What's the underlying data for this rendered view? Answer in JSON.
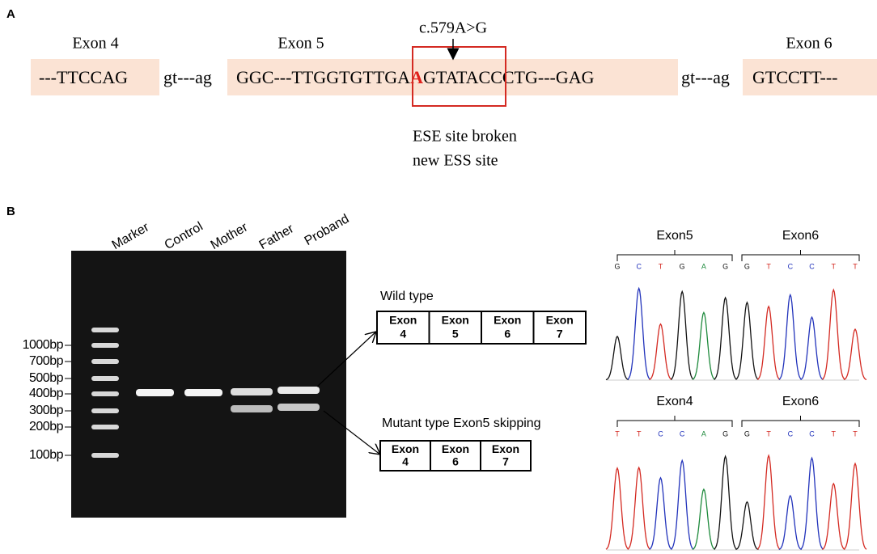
{
  "panel_a": {
    "label": "A",
    "exons": [
      "Exon 4",
      "Exon 5",
      "Exon 6"
    ],
    "variant": "c.579A>G",
    "sequence": {
      "exon4": "---TTCCAG",
      "intron1": "gt---ag",
      "exon5_left": "GGC---TTGGTGTTGA",
      "mutated_base": "A",
      "exon5_right": "GTATACCCTG---GAG",
      "intron2": "gt---ag",
      "exon6": "GTCCTT---"
    },
    "notes": [
      "ESE site broken",
      "new ESS site"
    ]
  },
  "panel_b": {
    "label": "B",
    "gel": {
      "lanes": [
        "Marker",
        "Control",
        "Mother",
        "Father",
        "Proband"
      ],
      "size_markers": [
        "1000bp",
        "700bp",
        "500bp",
        "400bp",
        "300bp",
        "200bp",
        "100bp"
      ]
    },
    "wild_type": {
      "title": "Wild type",
      "exons": [
        {
          "name": "Exon",
          "number": "4"
        },
        {
          "name": "Exon",
          "number": "5"
        },
        {
          "name": "Exon",
          "number": "6"
        },
        {
          "name": "Exon",
          "number": "7"
        }
      ]
    },
    "mutant_type": {
      "title": "Mutant type Exon5 skipping",
      "exons": [
        {
          "name": "Exon",
          "number": "4"
        },
        {
          "name": "Exon",
          "number": "6"
        },
        {
          "name": "Exon",
          "number": "7"
        }
      ]
    },
    "chromatograms": [
      {
        "regions": [
          "Exon5",
          "Exon6"
        ],
        "bases": [
          "G",
          "C",
          "T",
          "G",
          "A",
          "G",
          "G",
          "T",
          "C",
          "C",
          "T",
          "T"
        ]
      },
      {
        "regions": [
          "Exon4",
          "Exon6"
        ],
        "bases": [
          "T",
          "T",
          "C",
          "C",
          "A",
          "G",
          "G",
          "T",
          "C",
          "C",
          "T",
          "T"
        ]
      }
    ]
  }
}
